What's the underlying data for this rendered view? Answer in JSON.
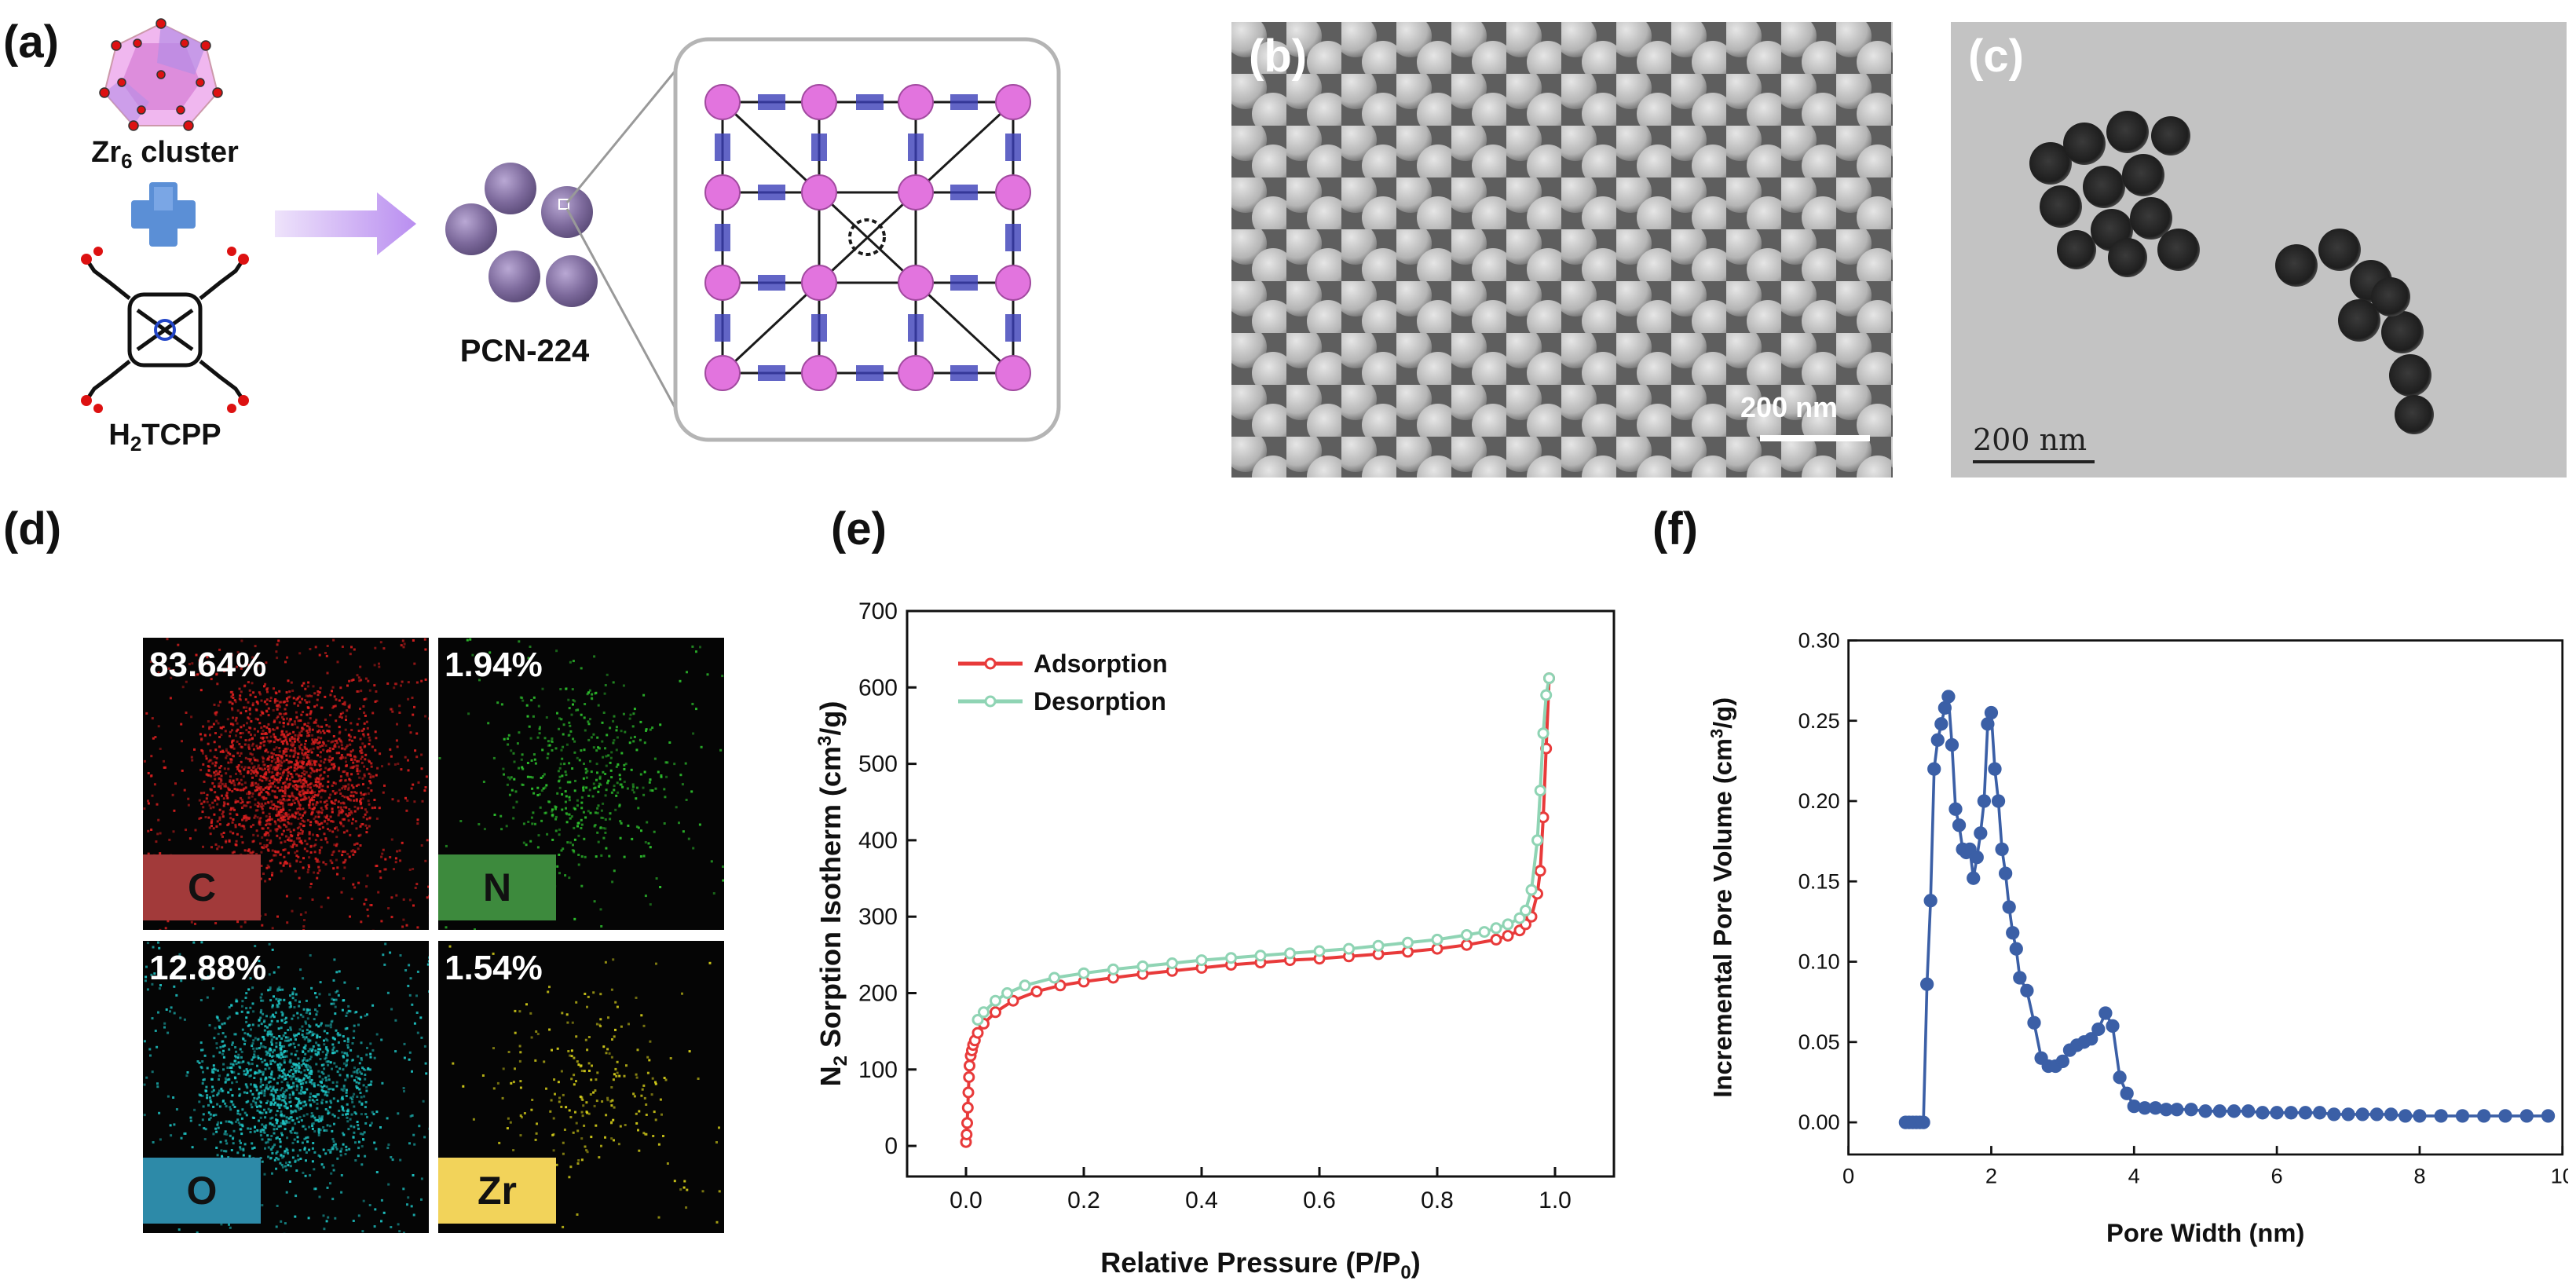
{
  "panels": {
    "a": {
      "label": "(a)",
      "zr6_text": "Zr",
      "zr6_sub": "6",
      "zr6_tail": " cluster",
      "linker_pre": "H",
      "linker_sub": "2",
      "linker_tail": "TCPP",
      "product": "PCN-224",
      "colors": {
        "cluster": "#e79be6",
        "plus": "#5b8fd6",
        "arrow": "#c6a3ef",
        "sphere": "#7d6a9c"
      }
    },
    "b": {
      "label": "(b)",
      "scale_text": "200 nm"
    },
    "c": {
      "label": "(c)",
      "scale_text": "200 nm"
    },
    "d": {
      "label": "(d)",
      "maps": [
        {
          "pct": "83.64%",
          "element": "C",
          "color": "#e02020",
          "tag_color": "#a23a3a"
        },
        {
          "pct": "1.94%",
          "element": "N",
          "color": "#2fc82f",
          "tag_color": "#3d8a3d"
        },
        {
          "pct": "12.88%",
          "element": "O",
          "color": "#1fc9c9",
          "tag_color": "#2d8aa8"
        },
        {
          "pct": "1.54%",
          "element": "Zr",
          "color": "#d9d21a",
          "tag_color": "#f2d35a"
        }
      ]
    },
    "e": {
      "label": "(e)"
    },
    "f": {
      "label": "(f)"
    }
  },
  "chart_data": [
    {
      "type": "line",
      "panel": "e",
      "ylabel_pre": "N",
      "ylabel_sub": "2",
      "ylabel_tail": " Sorption Isotherm (cm",
      "ylabel_sup": "3",
      "ylabel_end": "/g)",
      "xlabel_pre": "Relative Pressure (P/P",
      "xlabel_sub": "0",
      "xlabel_end": ")",
      "xlim": [
        -0.1,
        1.1
      ],
      "ylim": [
        -40,
        700
      ],
      "xticks": [
        "0.0",
        "0.2",
        "0.4",
        "0.6",
        "0.8",
        "1.0"
      ],
      "xtick_values": [
        0,
        0.2,
        0.4,
        0.6,
        0.8,
        1.0
      ],
      "yticks": [
        "0",
        "100",
        "200",
        "300",
        "400",
        "500",
        "600",
        "700"
      ],
      "ytick_values": [
        0,
        100,
        200,
        300,
        400,
        500,
        600,
        700
      ],
      "legend": "top-left",
      "series": [
        {
          "name": "Adsorption",
          "color": "#e83a3a",
          "x": [
            0.0,
            0.001,
            0.002,
            0.003,
            0.004,
            0.005,
            0.006,
            0.008,
            0.01,
            0.012,
            0.015,
            0.02,
            0.03,
            0.05,
            0.08,
            0.12,
            0.16,
            0.2,
            0.25,
            0.3,
            0.35,
            0.4,
            0.45,
            0.5,
            0.55,
            0.6,
            0.65,
            0.7,
            0.75,
            0.8,
            0.85,
            0.9,
            0.92,
            0.94,
            0.95,
            0.96,
            0.97,
            0.975,
            0.98,
            0.985,
            0.99
          ],
          "y": [
            5,
            15,
            30,
            50,
            70,
            90,
            105,
            118,
            125,
            132,
            138,
            148,
            160,
            175,
            190,
            202,
            210,
            215,
            220,
            225,
            229,
            233,
            237,
            240,
            243,
            245,
            248,
            251,
            254,
            258,
            263,
            270,
            275,
            282,
            290,
            300,
            330,
            360,
            430,
            520,
            612
          ]
        },
        {
          "name": "Desorption",
          "color": "#8fd4b4",
          "x": [
            0.99,
            0.985,
            0.98,
            0.975,
            0.97,
            0.96,
            0.95,
            0.94,
            0.92,
            0.9,
            0.88,
            0.85,
            0.8,
            0.75,
            0.7,
            0.65,
            0.6,
            0.55,
            0.5,
            0.45,
            0.4,
            0.35,
            0.3,
            0.25,
            0.2,
            0.15,
            0.1,
            0.07,
            0.05,
            0.03,
            0.02
          ],
          "y": [
            612,
            590,
            540,
            465,
            400,
            335,
            308,
            298,
            290,
            285,
            280,
            276,
            270,
            266,
            262,
            258,
            255,
            252,
            249,
            246,
            243,
            239,
            235,
            231,
            226,
            220,
            210,
            200,
            190,
            175,
            165
          ]
        }
      ]
    },
    {
      "type": "line",
      "panel": "f",
      "ylabel_pre": "Incremental Pore Volume (cm",
      "ylabel_sup": "3",
      "ylabel_end": "/g)",
      "xlabel": "Pore Width (nm)",
      "xlim": [
        0,
        10
      ],
      "ylim": [
        -0.02,
        0.3
      ],
      "xticks": [
        "0",
        "2",
        "4",
        "6",
        "8",
        "10"
      ],
      "xtick_values": [
        0,
        2,
        4,
        6,
        8,
        10
      ],
      "yticks": [
        "0.00",
        "0.05",
        "0.10",
        "0.15",
        "0.20",
        "0.25",
        "0.30"
      ],
      "ytick_values": [
        0,
        0.05,
        0.1,
        0.15,
        0.2,
        0.25,
        0.3
      ],
      "series": [
        {
          "color": "#3b5fa6",
          "x": [
            0.8,
            0.85,
            0.9,
            0.95,
            1.0,
            1.05,
            1.1,
            1.15,
            1.2,
            1.25,
            1.3,
            1.35,
            1.4,
            1.45,
            1.5,
            1.55,
            1.6,
            1.65,
            1.7,
            1.75,
            1.8,
            1.85,
            1.9,
            1.95,
            2.0,
            2.05,
            2.1,
            2.15,
            2.2,
            2.25,
            2.3,
            2.35,
            2.4,
            2.5,
            2.6,
            2.7,
            2.8,
            2.9,
            3.0,
            3.1,
            3.2,
            3.3,
            3.4,
            3.5,
            3.6,
            3.7,
            3.8,
            3.9,
            4.0,
            4.15,
            4.3,
            4.45,
            4.6,
            4.8,
            5.0,
            5.2,
            5.4,
            5.6,
            5.8,
            6.0,
            6.2,
            6.4,
            6.6,
            6.8,
            7.0,
            7.2,
            7.4,
            7.6,
            7.8,
            8.0,
            8.3,
            8.6,
            8.9,
            9.2,
            9.5,
            9.8
          ],
          "y": [
            0.0,
            0.0,
            0.0,
            0.0,
            0.0,
            0.0,
            0.086,
            0.138,
            0.22,
            0.238,
            0.248,
            0.258,
            0.265,
            0.235,
            0.195,
            0.185,
            0.17,
            0.168,
            0.17,
            0.152,
            0.165,
            0.18,
            0.2,
            0.248,
            0.255,
            0.22,
            0.2,
            0.17,
            0.155,
            0.134,
            0.118,
            0.108,
            0.09,
            0.082,
            0.062,
            0.04,
            0.035,
            0.035,
            0.038,
            0.045,
            0.048,
            0.05,
            0.052,
            0.058,
            0.068,
            0.06,
            0.028,
            0.018,
            0.01,
            0.009,
            0.009,
            0.008,
            0.008,
            0.008,
            0.007,
            0.007,
            0.007,
            0.007,
            0.006,
            0.006,
            0.006,
            0.006,
            0.006,
            0.005,
            0.005,
            0.005,
            0.005,
            0.005,
            0.004,
            0.004,
            0.004,
            0.004,
            0.004,
            0.004,
            0.004,
            0.004
          ]
        }
      ]
    }
  ]
}
